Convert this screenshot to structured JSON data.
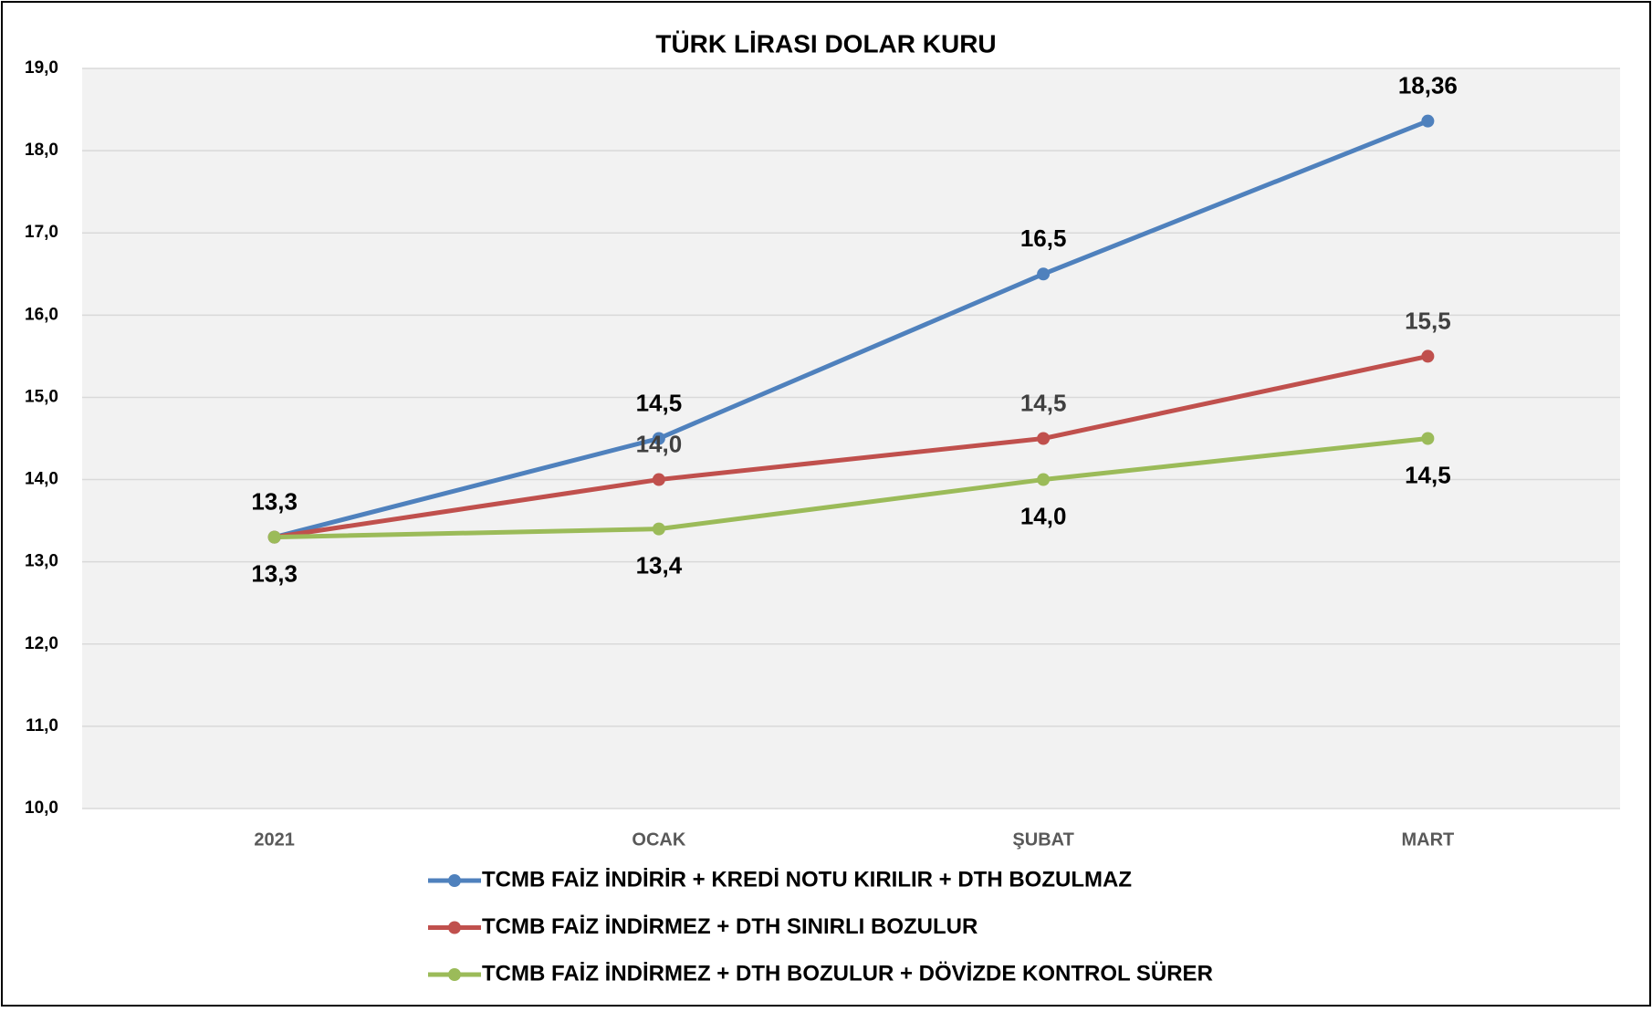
{
  "chart_data": {
    "type": "line",
    "title": "TÜRK LİRASI DOLAR KURU",
    "categories": [
      "2021",
      "OCAK",
      "ŞUBAT",
      "MART"
    ],
    "series": [
      {
        "name": "TCMB FAİZ İNDİRİR + KREDİ NOTU KIRILIR + DTH BOZULMAZ",
        "color": "#4f81bd",
        "label_position": "above",
        "label_color": "#000000",
        "values": [
          13.3,
          14.5,
          16.5,
          18.36
        ],
        "value_labels": [
          "13,3",
          "14,5",
          "16,5",
          "18,36"
        ]
      },
      {
        "name": "TCMB FAİZ İNDİRMEZ + DTH SINIRLI BOZULUR",
        "color": "#c0504d",
        "label_position": "above",
        "label_color": "#404040",
        "values": [
          13.3,
          14.0,
          14.5,
          15.5
        ],
        "value_labels": [
          null,
          "14,0",
          "14,5",
          "15,5"
        ]
      },
      {
        "name": "TCMB FAİZ İNDİRMEZ + DTH BOZULUR +  DÖVİZDE KONTROL SÜRER",
        "color": "#9bbb59",
        "label_position": "below",
        "label_color": "#000000",
        "values": [
          13.3,
          13.4,
          14.0,
          14.5
        ],
        "value_labels": [
          "13,3",
          "13,4",
          "14,0",
          "14,5"
        ]
      }
    ],
    "ylim": [
      10,
      19
    ],
    "yticks": [
      {
        "value": 10,
        "label": "10,0"
      },
      {
        "value": 11,
        "label": "11,0"
      },
      {
        "value": 12,
        "label": "12,0"
      },
      {
        "value": 13,
        "label": "13,0"
      },
      {
        "value": 14,
        "label": "14,0"
      },
      {
        "value": 15,
        "label": "15,0"
      },
      {
        "value": 16,
        "label": "16,0"
      },
      {
        "value": 17,
        "label": "17,0"
      },
      {
        "value": 18,
        "label": "18,0"
      },
      {
        "value": 19,
        "label": "19,0"
      }
    ],
    "grid": true,
    "legend": "bottom"
  }
}
